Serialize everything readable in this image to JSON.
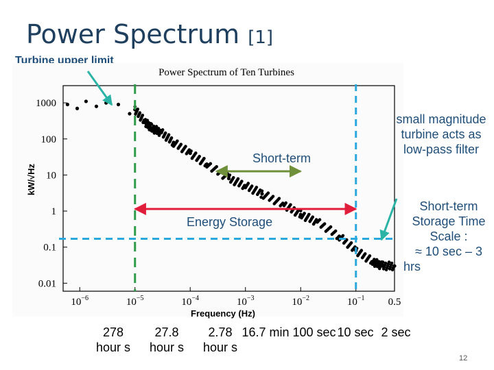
{
  "slide": {
    "title": "Power Spectrum",
    "title_ref": "[1]",
    "turbine_upper_limit": "Turbine upper limit",
    "page_number": "12"
  },
  "callouts": {
    "low_pass": [
      "small magnitude",
      "turbine acts as",
      "low-pass filter"
    ],
    "storage_time": [
      "Short-term",
      "Storage Time",
      "Scale :",
      "≈ 10 sec – 3",
      "hrs"
    ],
    "short_term": "Short-term",
    "energy_storage": "Energy Storage"
  },
  "bottom_labels": [
    {
      "text": "278 hour s"
    },
    {
      "text": "27.8 hour s"
    },
    {
      "text": "2.78 hour s"
    },
    {
      "text": "16.7 min"
    },
    {
      "text": "100 sec"
    },
    {
      "text": "10 sec"
    },
    {
      "text": "2 sec"
    }
  ],
  "chart_data": {
    "type": "scatter",
    "title": "Power Spectrum of Ten Turbines",
    "xlabel": "Frequency (Hz)",
    "ylabel": "kW/√Hz",
    "xscale": "log",
    "yscale": "log",
    "xlim": [
      5e-07,
      0.5
    ],
    "ylim": [
      0.006,
      3000
    ],
    "x_ticks": [
      "10^-6",
      "10^-5",
      "10^-4",
      "10^-3",
      "10^-2",
      "10^-1",
      "0.5"
    ],
    "y_ticks": [
      "1000",
      "100",
      "10",
      "1",
      "0.1",
      "0.01"
    ],
    "series": [
      {
        "points": [
          {
            "x": 6e-07,
            "y": 900
          },
          {
            "x": 9e-07,
            "y": 700
          },
          {
            "x": 1.3e-06,
            "y": 1100
          },
          {
            "x": 2e-06,
            "y": 800
          },
          {
            "x": 3e-06,
            "y": 1000
          },
          {
            "x": 5e-06,
            "y": 900
          },
          {
            "x": 8e-06,
            "y": 500
          },
          {
            "x": 1e-05,
            "y": 650
          },
          {
            "x": 1.5e-05,
            "y": 300
          },
          {
            "x": 2e-05,
            "y": 200
          },
          {
            "x": 3e-05,
            "y": 150
          },
          {
            "x": 5e-05,
            "y": 80
          },
          {
            "x": 0.0001,
            "y": 40
          },
          {
            "x": 0.0002,
            "y": 20
          },
          {
            "x": 0.0005,
            "y": 8
          },
          {
            "x": 0.001,
            "y": 5
          },
          {
            "x": 0.002,
            "y": 3
          },
          {
            "x": 0.005,
            "y": 1.5
          },
          {
            "x": 0.01,
            "y": 0.8
          },
          {
            "x": 0.02,
            "y": 0.5
          },
          {
            "x": 0.05,
            "y": 0.2
          },
          {
            "x": 0.1,
            "y": 0.08
          },
          {
            "x": 0.2,
            "y": 0.04
          },
          {
            "x": 0.3,
            "y": 0.03
          },
          {
            "x": 0.5,
            "y": 0.03
          }
        ]
      }
    ],
    "grid": false,
    "legend": "none",
    "annotations": {
      "turbine_upper_limit_freq": 1e-05,
      "storage_low_freq": 1e-05,
      "storage_high_freq": 0.1,
      "short_term_low_freq": 0.0003,
      "short_term_high_freq": 0.01,
      "horizontal_ref_y": 0.17
    }
  },
  "colors": {
    "title": "#1f3f5f",
    "callout_text": "#1f4e79",
    "green_dashed": "#2e9b49",
    "blue_dashed": "#29a8df",
    "short_term_arrow": "#6f8f3a",
    "energy_arrow": "#e01e3c",
    "teal_arrow": "#2bb3a6",
    "data": "#000000"
  }
}
